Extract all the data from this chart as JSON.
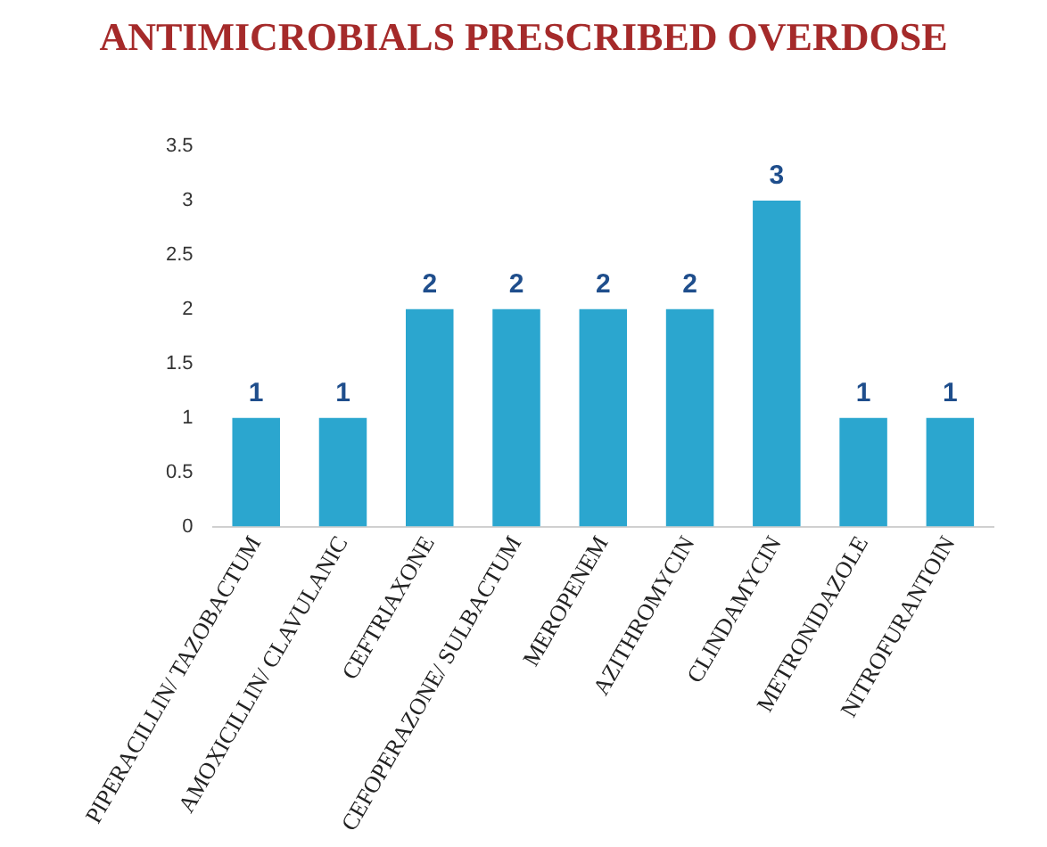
{
  "chart_data": {
    "type": "bar",
    "title": "ANTIMICROBIALS PRESCRIBED OVERDOSE",
    "categories": [
      "PIPERACILLIN/ TAZOBACTUM",
      "AMOXICILLIN/ CLAVULANIC",
      "CEFTRIAXONE",
      "CEFOPERAZONE/ SULBACTUM",
      "MEROPENEM",
      "AZITHROMYCIN",
      "CLINDAMYCIN",
      "METRONIDAZOLE",
      "NITROFURANTOIN"
    ],
    "values": [
      1,
      1,
      2,
      2,
      2,
      2,
      3,
      1,
      1
    ],
    "color": "#2ba6cf",
    "ylim": [
      0,
      3.5
    ],
    "yticks": [
      0,
      0.5,
      1,
      1.5,
      2,
      2.5,
      3,
      3.5
    ],
    "grid": false,
    "legend": false,
    "data_labels": true
  }
}
